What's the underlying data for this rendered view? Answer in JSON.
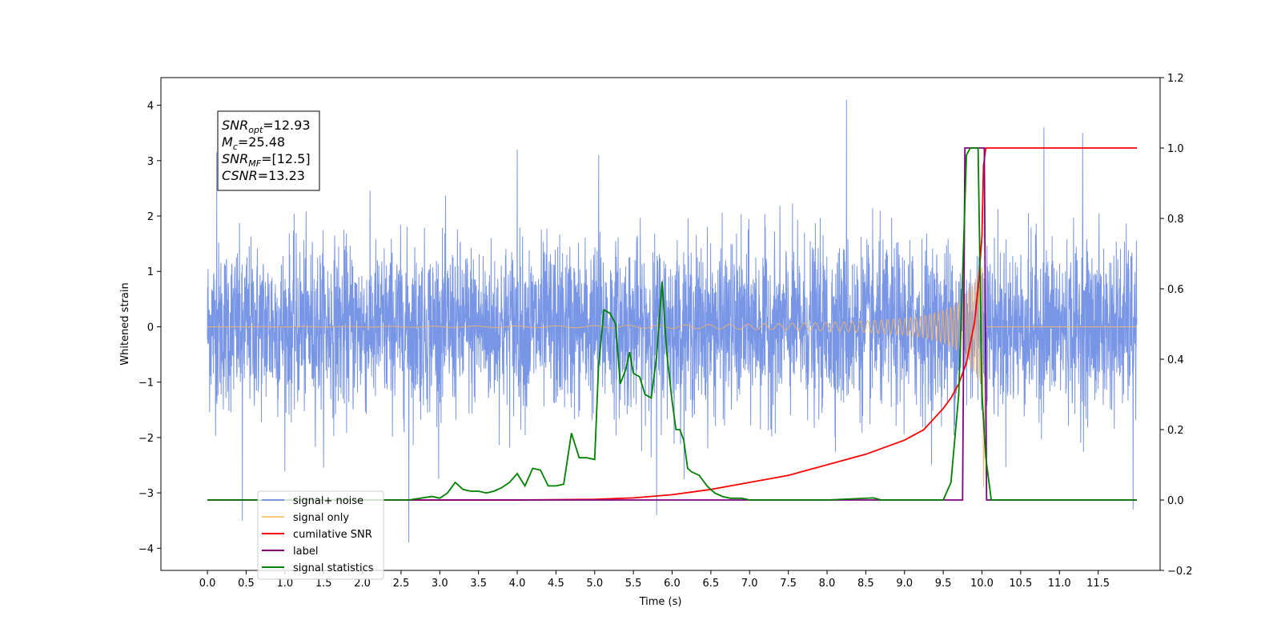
{
  "chart_data": {
    "type": "line",
    "xlabel": "Time (s)",
    "ylabel": "Whitened strain",
    "xlim": [
      -0.6,
      12.3
    ],
    "ylim": [
      -4.4,
      4.5
    ],
    "y2lim": [
      -0.2,
      1.2
    ],
    "x_ticks": [
      "0.0",
      "0.5",
      "1.0",
      "1.5",
      "2.0",
      "2.5",
      "3.0",
      "3.5",
      "4.0",
      "4.5",
      "5.0",
      "5.5",
      "6.0",
      "6.5",
      "7.0",
      "7.5",
      "8.0",
      "8.5",
      "9.0",
      "9.5",
      "10.0",
      "10.5",
      "11.0",
      "11.5"
    ],
    "y_ticks": [
      -4,
      -3,
      -2,
      -1,
      0,
      1,
      2,
      3,
      4
    ],
    "y2_ticks": [
      "−0.2",
      "0.0",
      "0.2",
      "0.4",
      "0.6",
      "0.8",
      "1.0",
      "1.2"
    ],
    "y2_tick_values": [
      -0.2,
      0.0,
      0.2,
      0.4,
      0.6,
      0.8,
      1.0,
      1.2
    ],
    "annotation": {
      "lines": [
        {
          "name": "SNR",
          "sub": "opt",
          "value": "=12.93"
        },
        {
          "name": "M",
          "sub": "c",
          "value": "=25.48"
        },
        {
          "name": "SNR",
          "sub": "MF",
          "value": "=[12.5]"
        },
        {
          "name": "CSNR",
          "sub": "",
          "value": "=13.23"
        }
      ]
    },
    "legend": {
      "placement": "lower-left",
      "entries": [
        {
          "label": "signal+ noise",
          "color": "#7895e6"
        },
        {
          "label": "signal only",
          "color": "#fbc97d"
        },
        {
          "label": "cumilative SNR",
          "color": "#ff0000"
        },
        {
          "label": "label",
          "color": "#800080"
        },
        {
          "label": "signal statistics",
          "color": "#008000"
        }
      ]
    },
    "series": [
      {
        "name": "signal+ noise",
        "axis": "left",
        "color": "#7895e6",
        "x_range": [
          0.0,
          12.0
        ],
        "amplitude": 0.75,
        "peaks": [
          [
            0.12,
            3.15
          ],
          [
            0.45,
            -3.5
          ],
          [
            2.6,
            -3.9
          ],
          [
            4.0,
            3.2
          ],
          [
            5.05,
            3.1
          ],
          [
            5.8,
            -3.4
          ],
          [
            8.25,
            4.1
          ],
          [
            10.8,
            3.6
          ],
          [
            11.3,
            3.5
          ],
          [
            11.95,
            -3.3
          ]
        ]
      },
      {
        "name": "signal only",
        "axis": "left",
        "color": "#f2b36a",
        "x": [
          0.0,
          3.0,
          5.0,
          6.0,
          7.0,
          7.5,
          8.0,
          8.5,
          9.0,
          9.25,
          9.5,
          9.65,
          9.75,
          9.85,
          9.93,
          10.0,
          10.02,
          10.05,
          12.0
        ],
        "envelope": [
          0.0,
          0.01,
          0.02,
          0.03,
          0.05,
          0.06,
          0.08,
          0.11,
          0.15,
          0.2,
          0.3,
          0.4,
          0.55,
          0.75,
          0.9,
          1.1,
          -2.9,
          0.0,
          0.0
        ]
      },
      {
        "name": "cumilative SNR",
        "axis": "right",
        "color": "#ff0000",
        "x": [
          0.0,
          3.0,
          4.0,
          5.0,
          5.5,
          6.0,
          6.5,
          7.0,
          7.5,
          8.0,
          8.5,
          9.0,
          9.25,
          9.5,
          9.6,
          9.7,
          9.8,
          9.9,
          9.95,
          10.0,
          10.02,
          10.05,
          12.0
        ],
        "y": [
          0.0,
          0.0,
          0.0,
          0.002,
          0.006,
          0.015,
          0.03,
          0.05,
          0.07,
          0.1,
          0.13,
          0.17,
          0.2,
          0.26,
          0.29,
          0.33,
          0.39,
          0.5,
          0.6,
          0.75,
          0.95,
          1.0,
          1.0
        ]
      },
      {
        "name": "label",
        "axis": "right",
        "color": "#800080",
        "x": [
          0.0,
          9.75,
          9.78,
          10.03,
          10.06,
          12.0
        ],
        "y": [
          0.0,
          0.0,
          1.0,
          1.0,
          0.0,
          0.0
        ]
      },
      {
        "name": "signal statistics",
        "axis": "right",
        "color": "#008000",
        "x": [
          0.0,
          2.6,
          2.9,
          3.0,
          3.1,
          3.2,
          3.3,
          3.4,
          3.5,
          3.6,
          3.7,
          3.8,
          3.9,
          4.0,
          4.1,
          4.2,
          4.3,
          4.4,
          4.5,
          4.6,
          4.7,
          4.8,
          4.9,
          5.0,
          5.05,
          5.12,
          5.2,
          5.27,
          5.33,
          5.4,
          5.45,
          5.5,
          5.58,
          5.65,
          5.73,
          5.8,
          5.87,
          5.93,
          6.0,
          6.05,
          6.1,
          6.15,
          6.2,
          6.25,
          6.35,
          6.45,
          6.55,
          6.65,
          6.75,
          6.9,
          7.0,
          7.2,
          8.0,
          8.6,
          8.7,
          8.8,
          9.0,
          9.5,
          9.6,
          9.7,
          9.8,
          9.85,
          9.95,
          10.0,
          10.05,
          10.12,
          12.0
        ],
        "y": [
          0.0,
          0.0,
          0.01,
          0.005,
          0.02,
          0.05,
          0.03,
          0.025,
          0.025,
          0.02,
          0.025,
          0.035,
          0.05,
          0.075,
          0.04,
          0.09,
          0.085,
          0.04,
          0.04,
          0.045,
          0.19,
          0.12,
          0.12,
          0.115,
          0.38,
          0.54,
          0.53,
          0.5,
          0.33,
          0.37,
          0.42,
          0.36,
          0.35,
          0.3,
          0.29,
          0.41,
          0.62,
          0.42,
          0.28,
          0.2,
          0.2,
          0.17,
          0.09,
          0.08,
          0.07,
          0.04,
          0.02,
          0.01,
          0.005,
          0.005,
          0.0,
          0.0,
          0.0,
          0.006,
          0.0,
          0.0,
          0.0,
          0.0,
          0.05,
          0.3,
          0.98,
          1.0,
          1.0,
          0.3,
          0.12,
          0.0,
          0.0
        ]
      }
    ]
  }
}
